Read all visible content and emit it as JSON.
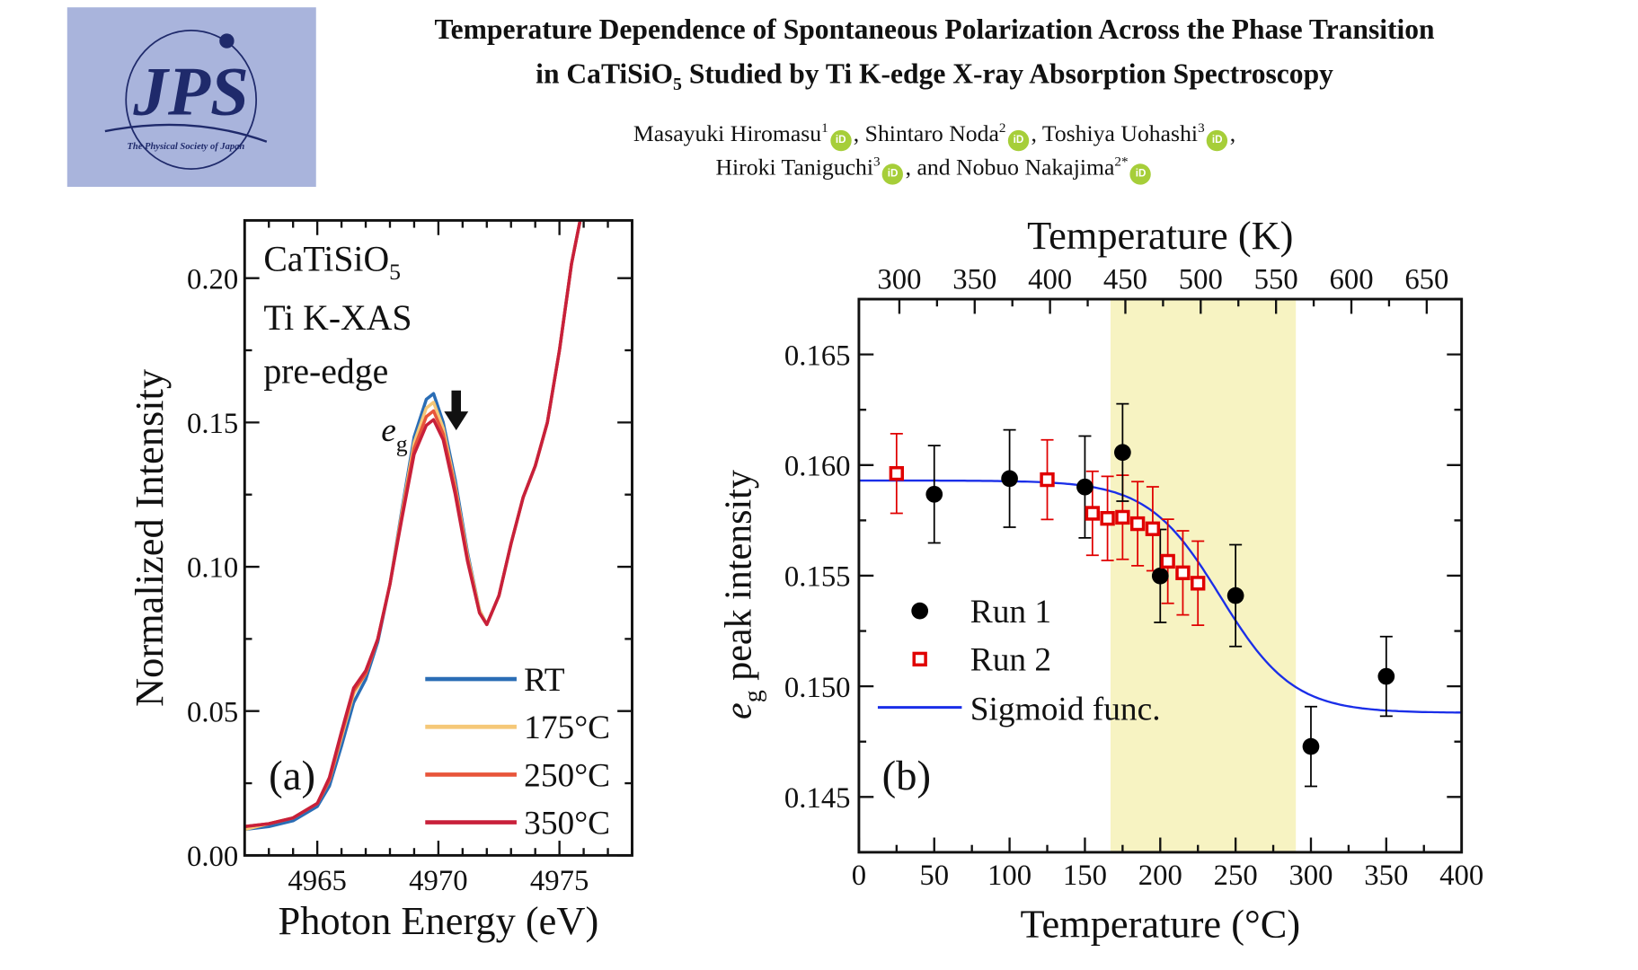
{
  "header": {
    "logo_text": "JPS",
    "logo_subtext": "The Physical Society of Japan",
    "title_line1": "Temperature Dependence of Spontaneous Polarization Across the Phase Transition",
    "title_line2_pre": "in CaTiSiO",
    "title_line2_sub": "5",
    "title_line2_post": " Studied by Ti K-edge X-ray Absorption Spectroscopy",
    "authors": [
      {
        "name": "Masayuki Hiromasu",
        "aff": "1",
        "sep": ", "
      },
      {
        "name": "Shintaro Noda",
        "aff": "2",
        "sep": ", "
      },
      {
        "name": "Toshiya Uohashi",
        "aff": "3",
        "sep": ","
      },
      {
        "name": "Hiroki Taniguchi",
        "aff": "3",
        "sep": ", and "
      },
      {
        "name": "Nobuo Nakajima",
        "aff": "2*",
        "sep": ""
      }
    ],
    "orcid_icon": "orcid-icon",
    "orcid_glyph": "iD",
    "orcid_color": "#a6ce39"
  },
  "chart_data": [
    {
      "type": "line",
      "panel_label": "(a)",
      "annotation_lines": [
        "CaTiSiO",
        "Ti K-XAS",
        "pre-edge"
      ],
      "annotation_sub": "5",
      "peak_label": "e",
      "peak_label_sub": "g",
      "arrow": "down-arrow",
      "xlabel": "Photon Energy (eV)",
      "ylabel": "Normalized Intensity",
      "xlim": [
        4962,
        4978
      ],
      "ylim": [
        0,
        0.22
      ],
      "xticks": [
        4965,
        4970,
        4975
      ],
      "yticks": [
        "0.00",
        "0.05",
        "0.10",
        "0.15",
        "0.20"
      ],
      "legend_position": "bottom-right",
      "x": [
        4962,
        4963,
        4964,
        4965,
        4965.5,
        4966,
        4966.5,
        4967,
        4967.5,
        4968,
        4968.5,
        4969,
        4969.5,
        4969.8,
        4970.2,
        4970.7,
        4971.2,
        4971.7,
        4972,
        4972.5,
        4973,
        4973.5,
        4974,
        4974.5,
        4975,
        4975.5,
        4975.9
      ],
      "series": [
        {
          "name": "RT",
          "color": "#2a6db5",
          "values": [
            0.009,
            0.01,
            0.012,
            0.017,
            0.024,
            0.038,
            0.053,
            0.061,
            0.074,
            0.094,
            0.12,
            0.145,
            0.158,
            0.16,
            0.15,
            0.13,
            0.105,
            0.085,
            0.08,
            0.09,
            0.108,
            0.124,
            0.135,
            0.15,
            0.175,
            0.205,
            0.222
          ]
        },
        {
          "name": "175°C",
          "color": "#f5c878",
          "values": [
            0.009,
            0.011,
            0.013,
            0.018,
            0.026,
            0.041,
            0.056,
            0.063,
            0.075,
            0.094,
            0.119,
            0.143,
            0.155,
            0.157,
            0.148,
            0.128,
            0.104,
            0.085,
            0.08,
            0.09,
            0.108,
            0.124,
            0.135,
            0.15,
            0.175,
            0.205,
            0.222
          ]
        },
        {
          "name": "250°C",
          "color": "#e8553a",
          "values": [
            0.01,
            0.011,
            0.013,
            0.018,
            0.026,
            0.042,
            0.057,
            0.063,
            0.075,
            0.094,
            0.118,
            0.141,
            0.152,
            0.154,
            0.146,
            0.127,
            0.103,
            0.084,
            0.08,
            0.09,
            0.108,
            0.124,
            0.135,
            0.15,
            0.175,
            0.205,
            0.222
          ]
        },
        {
          "name": "350°C",
          "color": "#c8203a",
          "values": [
            0.01,
            0.011,
            0.013,
            0.018,
            0.027,
            0.043,
            0.058,
            0.064,
            0.075,
            0.094,
            0.117,
            0.139,
            0.149,
            0.151,
            0.144,
            0.125,
            0.102,
            0.084,
            0.08,
            0.09,
            0.108,
            0.124,
            0.135,
            0.15,
            0.175,
            0.205,
            0.222
          ]
        }
      ]
    },
    {
      "type": "scatter",
      "panel_label": "(b)",
      "xlabel": "Temperature (°C)",
      "x2label": "Temperature (K)",
      "ylabel": "e",
      "ylabel_sub": "g",
      "ylabel_post": " peak intensity",
      "xlim": [
        0,
        400
      ],
      "ylim": [
        0.1425,
        0.1675
      ],
      "xticks": [
        0,
        50,
        100,
        150,
        200,
        250,
        300,
        350,
        400
      ],
      "x2ticks": [
        300,
        350,
        400,
        450,
        500,
        550,
        600,
        650
      ],
      "yticks": [
        "0.145",
        "0.150",
        "0.155",
        "0.160",
        "0.165"
      ],
      "shaded_region": {
        "x": [
          167,
          290
        ],
        "color": "#f7f3c2"
      },
      "legend_position": "bottom-left",
      "series": [
        {
          "name": "Run 1",
          "marker": "filled-circle",
          "color": "#000000",
          "points": [
            [
              50,
              0.15868,
              0.0022
            ],
            [
              100,
              0.15939,
              0.0022
            ],
            [
              150,
              0.15901,
              0.0023
            ],
            [
              175,
              0.16057,
              0.0022
            ],
            [
              200,
              0.15499,
              0.0021
            ],
            [
              250,
              0.1541,
              0.0023
            ],
            [
              300,
              0.14728,
              0.0018
            ],
            [
              350,
              0.15045,
              0.0018
            ]
          ]
        },
        {
          "name": "Run 2",
          "marker": "open-square",
          "color": "#e00000",
          "points": [
            [
              25,
              0.15962,
              0.0018
            ],
            [
              125,
              0.15934,
              0.0018
            ],
            [
              155,
              0.15782,
              0.0019
            ],
            [
              165,
              0.15759,
              0.0019
            ],
            [
              175,
              0.15764,
              0.0019
            ],
            [
              185,
              0.15735,
              0.0019
            ],
            [
              195,
              0.15712,
              0.0019
            ],
            [
              205,
              0.15565,
              0.0019
            ],
            [
              215,
              0.15513,
              0.0019
            ],
            [
              225,
              0.15466,
              0.0019
            ]
          ]
        },
        {
          "name": "Sigmoid func.",
          "type": "line",
          "color": "#1a2ee8",
          "sigmoid": {
            "upper": 0.1593,
            "lower": 0.1488,
            "center": 240,
            "width": 24
          }
        }
      ]
    }
  ]
}
